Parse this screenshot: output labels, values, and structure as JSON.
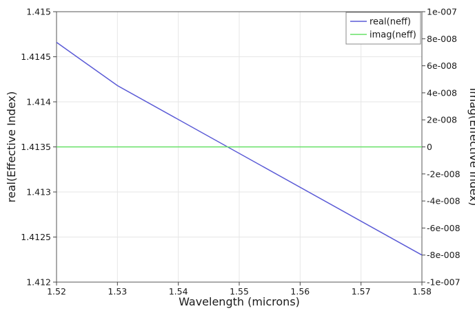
{
  "chart_data": {
    "type": "line",
    "xlabel": "Wavelength (microns)",
    "ylabel_left": "real(Effective Index)",
    "ylabel_right": "imag(Effective Index)",
    "xlim": [
      1.52,
      1.58
    ],
    "ylim_left": [
      1.412,
      1.415
    ],
    "ylim_right": [
      -1e-07,
      1e-07
    ],
    "x_ticks": [
      "1.52",
      "1.53",
      "1.54",
      "1.55",
      "1.56",
      "1.57",
      "1.58"
    ],
    "y_left_ticks": [
      "1.412",
      "1.4125",
      "1.413",
      "1.4135",
      "1.414",
      "1.4145",
      "1.415"
    ],
    "y_right_ticks": [
      "-1e-007",
      "-8e-008",
      "-6e-008",
      "-4e-008",
      "-2e-008",
      "0",
      "2e-008",
      "4e-008",
      "6e-008",
      "8e-008",
      "1e-007"
    ],
    "grid": true,
    "legend_position": "top-right",
    "series": [
      {
        "name": "real(neff)",
        "axis": "left",
        "color": "#5a5ad6",
        "x": [
          1.52,
          1.53,
          1.58
        ],
        "y": [
          1.41466,
          1.41418,
          1.4123
        ]
      },
      {
        "name": "imag(neff)",
        "axis": "right",
        "color": "#66e066",
        "x": [
          1.52,
          1.58
        ],
        "y": [
          0,
          0
        ]
      }
    ]
  }
}
